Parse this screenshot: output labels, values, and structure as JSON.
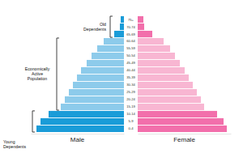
{
  "chart_data": {
    "type": "bar",
    "orientation": "horizontal",
    "categories": [
      "0-4",
      "5-9",
      "10-14",
      "15-19",
      "20-24",
      "25-29",
      "30-34",
      "35-39",
      "40-44",
      "45-49",
      "50-54",
      "55-59",
      "60-64",
      "65-69",
      "70-74",
      "75+"
    ],
    "series": [
      {
        "name": "Male",
        "values": [
          108,
          103,
          93,
          78,
          73,
          68,
          63,
          58,
          53,
          46,
          40,
          33,
          25,
          12,
          5,
          4
        ],
        "colors": [
          "#1a9cd8",
          "#1a9cd8",
          "#1a9cd8",
          "#8dcbeb",
          "#8dcbeb",
          "#8dcbeb",
          "#8dcbeb",
          "#8dcbeb",
          "#8dcbeb",
          "#8dcbeb",
          "#8dcbeb",
          "#8dcbeb",
          "#8dcbeb",
          "#1a9cd8",
          "#1a9cd8",
          "#1a9cd8"
        ]
      },
      {
        "name": "Female",
        "values": [
          110,
          106,
          98,
          82,
          78,
          73,
          68,
          63,
          58,
          52,
          46,
          40,
          32,
          18,
          8,
          7
        ],
        "colors": [
          "#f26fab",
          "#f26fab",
          "#f26fab",
          "#f8b6d2",
          "#f8b6d2",
          "#f8b6d2",
          "#f8b6d2",
          "#f8b6d2",
          "#f8b6d2",
          "#f8b6d2",
          "#f8b6d2",
          "#f8b6d2",
          "#f8b6d2",
          "#f26fab",
          "#f26fab",
          "#f26fab"
        ]
      }
    ],
    "groups": [
      {
        "label": "Old Dependents",
        "from": "65-69",
        "to": "75+"
      },
      {
        "label": "Economically Active Population",
        "from": "15-19",
        "to": "60-64"
      },
      {
        "label": "Young Dependents",
        "from": "0-4",
        "to": "10-14"
      }
    ],
    "xlim": [
      0,
      115
    ],
    "xticks": [],
    "tick_labels": false
  }
}
